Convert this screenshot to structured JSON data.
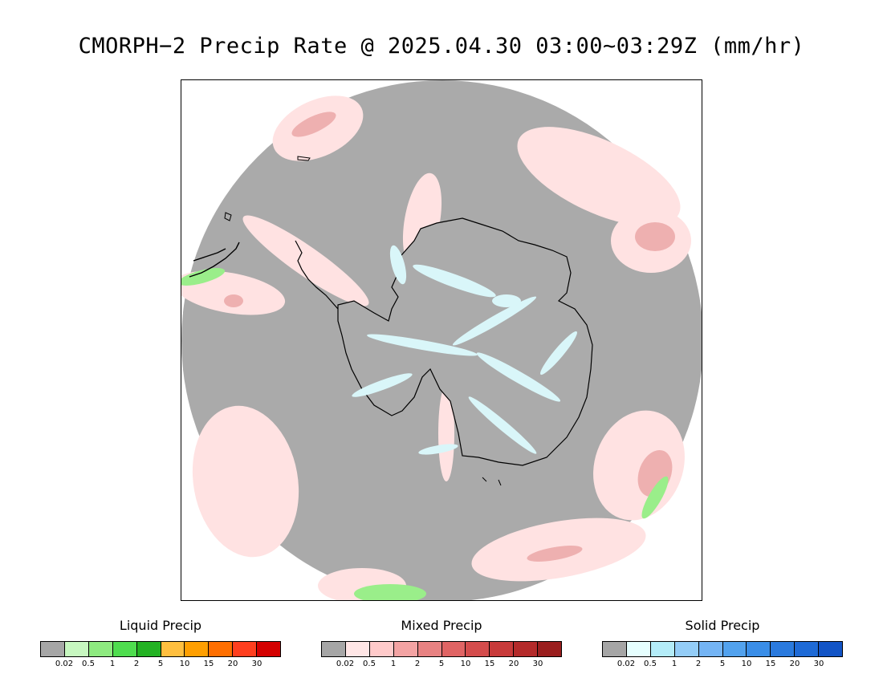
{
  "title": "CMORPH−2 Precip Rate @ 2025.04.30 03:00~03:29Z (mm/hr)",
  "map": {
    "projection": "south polar stereographic",
    "background_color": "#aaaaaa",
    "coastline_color": "#000000"
  },
  "legends": [
    {
      "title": "Liquid Precip",
      "colors": [
        "#a6a6a6",
        "#c7f7c0",
        "#8eea80",
        "#4fdd4f",
        "#23b223",
        "#ffbf3f",
        "#ff9f00",
        "#ff6f00",
        "#ff3f1f",
        "#d40000"
      ],
      "ticks": [
        "0.02",
        "0.5",
        "1",
        "2",
        "5",
        "10",
        "15",
        "20",
        "30"
      ]
    },
    {
      "title": "Mixed Precip",
      "colors": [
        "#a6a6a6",
        "#ffe6e6",
        "#ffcaca",
        "#f3a3a3",
        "#e88282",
        "#e06464",
        "#d44c4c",
        "#c83a3a",
        "#b42a2a",
        "#9a1e1e"
      ],
      "ticks": [
        "0.02",
        "0.5",
        "1",
        "2",
        "5",
        "10",
        "15",
        "20",
        "30"
      ]
    },
    {
      "title": "Solid Precip",
      "colors": [
        "#a6a6a6",
        "#e6ffff",
        "#b4ecf8",
        "#94cdf7",
        "#74b4f4",
        "#52a2ee",
        "#3a8ee8",
        "#2a7ade",
        "#1e6ad6",
        "#1254c6"
      ],
      "ticks": [
        "0.02",
        "0.5",
        "1",
        "2",
        "5",
        "10",
        "15",
        "20",
        "30"
      ]
    }
  ]
}
